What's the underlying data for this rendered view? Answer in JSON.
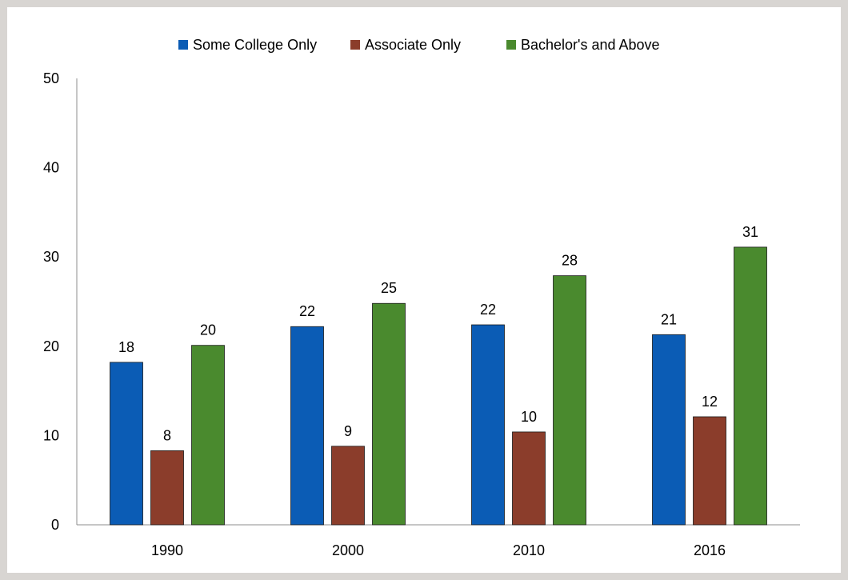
{
  "colors": {
    "Some College Only": "#0b5cb5",
    "Associate Only": "#8b3d2b",
    "Bachelor's and Above": "#4a8a2e",
    "axis": "#8c8c8c"
  },
  "chart_data": {
    "type": "bar",
    "title": "",
    "xlabel": "",
    "ylabel": "",
    "ylim": [
      0,
      50
    ],
    "yticks": [
      0,
      10,
      20,
      30,
      40,
      50
    ],
    "grid": false,
    "legend_position": "top",
    "categories": [
      "1990",
      "2000",
      "2010",
      "2016"
    ],
    "series": [
      {
        "name": "Some College Only",
        "values": [
          18.2,
          22.2,
          22.4,
          21.3
        ],
        "labels": [
          "18",
          "22",
          "22",
          "21"
        ]
      },
      {
        "name": "Associate Only",
        "values": [
          8.3,
          8.8,
          10.4,
          12.1
        ],
        "labels": [
          "8",
          "9",
          "10",
          "12"
        ]
      },
      {
        "name": "Bachelor's and Above",
        "values": [
          20.1,
          24.8,
          27.9,
          31.1
        ],
        "labels": [
          "20",
          "25",
          "28",
          "31"
        ]
      }
    ]
  }
}
